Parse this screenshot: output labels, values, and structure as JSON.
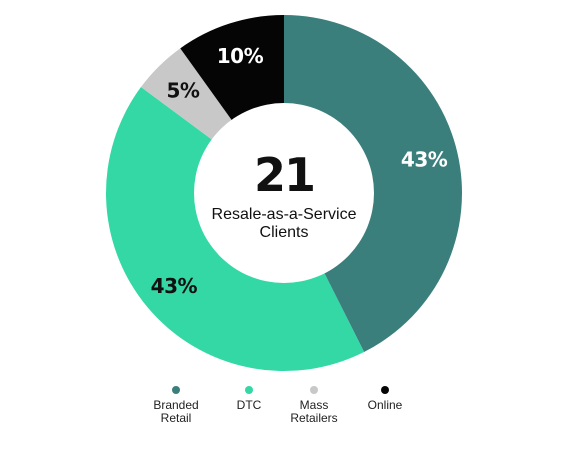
{
  "chart_data": {
    "type": "pie",
    "variant": "donut",
    "center_value": "21",
    "center_label": "Resale-as-a-Service\nClients",
    "slices": [
      {
        "name": "Branded\nRetail",
        "value": 43,
        "label": "43%",
        "color": "#3a7f7c",
        "label_color": "#ffffff"
      },
      {
        "name": "DTC",
        "value": 43,
        "label": "43%",
        "color": "#33d8a5",
        "label_color": "#111111"
      },
      {
        "name": "Mass\nRetailers",
        "value": 5,
        "label": "5%",
        "color": "#c8c8c8",
        "label_color": "#111111"
      },
      {
        "name": "Online",
        "value": 10,
        "label": "10%",
        "color": "#050505",
        "label_color": "#ffffff"
      }
    ],
    "legend_position": "bottom"
  }
}
